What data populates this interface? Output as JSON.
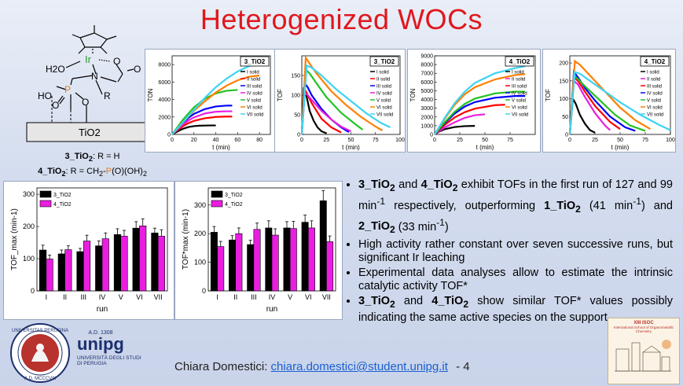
{
  "slide": {
    "title": "Heterogenized WOCs",
    "page_number": "4"
  },
  "molecule": {
    "labels": {
      "metal": "Ir",
      "water": "H2O",
      "nitrogen": "N",
      "r_group": "R",
      "ho": "HO",
      "phosphorus": "P",
      "support": "TiO2"
    },
    "caption": {
      "line1_id": "3_TiO",
      "line1_sub": "2",
      "line1_rest": ": R = H",
      "line2_id": "4_TiO",
      "line2_sub": "2",
      "line2_rest": ": R = CH",
      "line2_sub2": "2",
      "line2_dash": "-",
      "line2_p": "P",
      "line2_o": "(O)(OH)",
      "line2_sub3": "2"
    }
  },
  "chart_data": [
    {
      "type": "line",
      "panel_label": "3_TiO2",
      "ylabel": "TON",
      "xlabel": "t (min)",
      "xlim": [
        0,
        90
      ],
      "ylim": [
        0,
        9000
      ],
      "xticks": [
        0,
        20,
        40,
        60,
        80
      ],
      "yticks": [
        0,
        2000,
        4000,
        6000,
        8000
      ],
      "legend": [
        "I solid",
        "II solid",
        "III solid",
        "IV solid",
        "V solid",
        "VI solid",
        "VII solid"
      ],
      "series": [
        {
          "name": "I solid",
          "color": "#000000",
          "x": [
            0,
            5,
            10,
            15,
            20,
            25,
            30,
            35,
            40
          ],
          "y": [
            0,
            350,
            650,
            850,
            950,
            1000,
            1020,
            1030,
            1030
          ]
        },
        {
          "name": "II solid",
          "color": "#ff0000",
          "x": [
            0,
            5,
            10,
            15,
            20,
            30,
            40,
            50,
            55
          ],
          "y": [
            0,
            500,
            950,
            1300,
            1550,
            1850,
            2000,
            2050,
            2050
          ]
        },
        {
          "name": "III solid",
          "color": "#0000ff",
          "x": [
            0,
            5,
            10,
            15,
            20,
            30,
            40,
            50,
            55
          ],
          "y": [
            0,
            700,
            1350,
            1900,
            2350,
            2900,
            3200,
            3300,
            3300
          ]
        },
        {
          "name": "IV solid",
          "color": "#e91ee0",
          "x": [
            0,
            5,
            10,
            15,
            20,
            30,
            40,
            50,
            55
          ],
          "y": [
            0,
            600,
            1150,
            1600,
            1950,
            2400,
            2600,
            2650,
            2650
          ]
        },
        {
          "name": "V solid",
          "color": "#22c322",
          "x": [
            0,
            5,
            10,
            20,
            30,
            40,
            50,
            60
          ],
          "y": [
            0,
            850,
            1700,
            3100,
            4100,
            4700,
            5000,
            5100
          ]
        },
        {
          "name": "VI solid",
          "color": "#ff7f00",
          "x": [
            0,
            5,
            10,
            20,
            30,
            40,
            50,
            60,
            70,
            80
          ],
          "y": [
            0,
            700,
            1400,
            2700,
            3800,
            4800,
            5600,
            6200,
            6600,
            6750
          ]
        },
        {
          "name": "VII solid",
          "color": "#3fd3f2",
          "x": [
            0,
            10,
            20,
            30,
            40,
            50,
            60,
            70,
            80,
            85
          ],
          "y": [
            0,
            1400,
            2800,
            4200,
            5400,
            6400,
            7200,
            7800,
            8200,
            8350
          ]
        }
      ]
    },
    {
      "type": "line",
      "panel_label": "3_TiO2",
      "ylabel": "TOF",
      "xlabel": "t (min)",
      "xlim": [
        0,
        100
      ],
      "ylim": [
        0,
        200
      ],
      "xticks": [
        0,
        25,
        50,
        75,
        100
      ],
      "yticks": [
        0,
        50,
        100,
        150
      ],
      "legend": [
        "I solid",
        "II solid",
        "III solid",
        "IV solid",
        "V solid",
        "VI solid",
        "VII solid"
      ],
      "series": [
        {
          "name": "I solid",
          "color": "#000000",
          "x": [
            0,
            2,
            5,
            8,
            12,
            16,
            20,
            25
          ],
          "y": [
            0,
            120,
            95,
            60,
            35,
            18,
            8,
            3
          ]
        },
        {
          "name": "II solid",
          "color": "#ff0000",
          "x": [
            0,
            3,
            6,
            10,
            15,
            20,
            30,
            40
          ],
          "y": [
            0,
            115,
            100,
            80,
            60,
            40,
            18,
            5
          ]
        },
        {
          "name": "III solid",
          "color": "#0000ff",
          "x": [
            0,
            3,
            6,
            10,
            20,
            30,
            40,
            48
          ],
          "y": [
            0,
            130,
            120,
            100,
            65,
            38,
            18,
            6
          ]
        },
        {
          "name": "IV solid",
          "color": "#e91ee0",
          "x": [
            0,
            3,
            6,
            10,
            20,
            30,
            40,
            50
          ],
          "y": [
            0,
            105,
            100,
            88,
            60,
            38,
            20,
            8
          ]
        },
        {
          "name": "V solid",
          "color": "#22c322",
          "x": [
            0,
            4,
            8,
            15,
            25,
            40,
            55,
            62
          ],
          "y": [
            0,
            165,
            155,
            130,
            95,
            55,
            25,
            12
          ]
        },
        {
          "name": "VI solid",
          "color": "#ff7f00",
          "x": [
            0,
            4,
            8,
            15,
            30,
            45,
            60,
            75,
            82
          ],
          "y": [
            0,
            195,
            180,
            155,
            110,
            75,
            45,
            20,
            10
          ]
        },
        {
          "name": "VII solid",
          "color": "#3fd3f2",
          "x": [
            0,
            5,
            10,
            20,
            35,
            50,
            65,
            80,
            90
          ],
          "y": [
            0,
            175,
            170,
            150,
            115,
            85,
            55,
            30,
            18
          ]
        }
      ]
    },
    {
      "type": "line",
      "panel_label": "4_TiO2",
      "ylabel": "TON",
      "xlabel": "t (min)",
      "xlim": [
        0,
        100
      ],
      "ylim": [
        0,
        9000
      ],
      "xticks": [
        0,
        25,
        50,
        75
      ],
      "yticks": [
        0,
        1000,
        2000,
        3000,
        4000,
        5000,
        6000,
        7000,
        8000,
        9000
      ],
      "legend": [
        "I solid",
        "II solid",
        "III solid",
        "IV solid",
        "V solid",
        "VI solid",
        "VII solid"
      ],
      "series": [
        {
          "name": "I solid",
          "color": "#000000",
          "x": [
            0,
            5,
            10,
            20,
            30,
            40
          ],
          "y": [
            0,
            350,
            600,
            850,
            950,
            980
          ]
        },
        {
          "name": "II solid",
          "color": "#e91ee0",
          "x": [
            0,
            10,
            20,
            30,
            40,
            50
          ],
          "y": [
            0,
            800,
            1400,
            1900,
            2200,
            2300
          ]
        },
        {
          "name": "III solid",
          "color": "#ff0000",
          "x": [
            0,
            10,
            20,
            30,
            40,
            60,
            70
          ],
          "y": [
            0,
            1100,
            1950,
            2550,
            2950,
            3350,
            3400
          ]
        },
        {
          "name": "IV solid",
          "color": "#0000ff",
          "x": [
            0,
            10,
            20,
            30,
            40,
            60,
            80,
            90
          ],
          "y": [
            0,
            1300,
            2400,
            3200,
            3700,
            4200,
            4400,
            4400
          ]
        },
        {
          "name": "V solid",
          "color": "#22c322",
          "x": [
            0,
            10,
            20,
            30,
            40,
            60,
            80,
            90
          ],
          "y": [
            0,
            1400,
            2600,
            3500,
            4100,
            4700,
            4900,
            4900
          ]
        },
        {
          "name": "VI solid",
          "color": "#ff7f00",
          "x": [
            0,
            10,
            20,
            30,
            40,
            60,
            80,
            90
          ],
          "y": [
            0,
            1800,
            3400,
            4600,
            5400,
            6300,
            6800,
            6900
          ]
        },
        {
          "name": "VII solid",
          "color": "#3fd3f2",
          "x": [
            0,
            10,
            20,
            30,
            40,
            60,
            80,
            90
          ],
          "y": [
            0,
            1900,
            3600,
            4900,
            5900,
            7000,
            7600,
            7800
          ]
        }
      ]
    },
    {
      "type": "line",
      "panel_label": "4_TiO2",
      "ylabel": "TOF",
      "xlabel": "t (min)",
      "xlim": [
        0,
        100
      ],
      "ylim": [
        0,
        220
      ],
      "xticks": [
        0,
        25,
        50,
        75,
        100
      ],
      "yticks": [
        0,
        50,
        100,
        150,
        200
      ],
      "legend": [
        "I solid",
        "II solid",
        "III solid",
        "IV solid",
        "V solid",
        "VI solid",
        "VII solid"
      ],
      "series": [
        {
          "name": "I solid",
          "color": "#000000",
          "x": [
            0,
            3,
            6,
            10,
            15,
            20,
            25
          ],
          "y": [
            0,
            100,
            85,
            55,
            30,
            12,
            5
          ]
        },
        {
          "name": "II solid",
          "color": "#e91ee0",
          "x": [
            0,
            4,
            8,
            15,
            25,
            35,
            40
          ],
          "y": [
            0,
            150,
            140,
            105,
            60,
            25,
            12
          ]
        },
        {
          "name": "III solid",
          "color": "#ff0000",
          "x": [
            0,
            4,
            8,
            15,
            25,
            40,
            50
          ],
          "y": [
            0,
            160,
            150,
            120,
            80,
            35,
            15
          ]
        },
        {
          "name": "IV solid",
          "color": "#0000ff",
          "x": [
            0,
            4,
            8,
            15,
            25,
            40,
            55,
            65
          ],
          "y": [
            0,
            175,
            160,
            130,
            95,
            50,
            20,
            10
          ]
        },
        {
          "name": "V solid",
          "color": "#22c322",
          "x": [
            0,
            4,
            8,
            15,
            30,
            45,
            60,
            75
          ],
          "y": [
            0,
            165,
            155,
            135,
            95,
            55,
            25,
            10
          ]
        },
        {
          "name": "VI solid",
          "color": "#ff7f00",
          "x": [
            0,
            5,
            10,
            20,
            35,
            50,
            65,
            80
          ],
          "y": [
            0,
            205,
            195,
            165,
            120,
            75,
            40,
            15
          ]
        },
        {
          "name": "VII solid",
          "color": "#3fd3f2",
          "x": [
            0,
            5,
            10,
            20,
            35,
            50,
            70,
            90,
            100
          ],
          "y": [
            0,
            175,
            170,
            150,
            120,
            90,
            55,
            25,
            12
          ]
        }
      ]
    },
    {
      "type": "bar",
      "ylabel": "TOF_max (min-1)",
      "xlabel": "run",
      "categories": [
        "I",
        "II",
        "III",
        "IV",
        "V",
        "VI",
        "VII"
      ],
      "ylim": [
        0,
        320
      ],
      "yticks": [
        0,
        100,
        200,
        300
      ],
      "series": [
        {
          "name": "3_TiO2",
          "color": "#000000",
          "values": [
            127,
            115,
            122,
            140,
            175,
            195,
            180
          ],
          "errors": [
            15,
            12,
            10,
            15,
            18,
            20,
            15
          ]
        },
        {
          "name": "4_TiO2",
          "color": "#e91ee0",
          "values": [
            99,
            128,
            155,
            162,
            170,
            202,
            170
          ],
          "errors": [
            12,
            12,
            18,
            18,
            18,
            22,
            20
          ]
        }
      ]
    },
    {
      "type": "bar",
      "ylabel": "TOF*max (min-1)",
      "xlabel": "run",
      "categories": [
        "I",
        "II",
        "III",
        "IV",
        "V",
        "VI",
        "VII"
      ],
      "ylim": [
        0,
        360
      ],
      "yticks": [
        0,
        100,
        200,
        300
      ],
      "series": [
        {
          "name": "3_TiO2",
          "color": "#000000",
          "values": [
            205,
            178,
            162,
            220,
            220,
            240,
            315
          ],
          "errors": [
            20,
            15,
            15,
            25,
            22,
            25,
            35
          ]
        },
        {
          "name": "4_TiO2",
          "color": "#e91ee0",
          "values": [
            155,
            200,
            215,
            195,
            218,
            220,
            172
          ],
          "errors": [
            18,
            20,
            22,
            22,
            25,
            25,
            20
          ]
        }
      ]
    }
  ],
  "bullets": [
    {
      "html": "<b>3_TiO<sub>2</sub></b> and <b>4_TiO<sub>2</sub></b> exhibit TOFs in the first run of 127 and 99 min<sup>-1</sup> respectively, outperforming <b>1_TiO<sub>2</sub></b> (41 min<sup>-1</sup>) and <b>2_TiO<sub>2</sub></b> (33 min<sup>-1</sup>)"
    },
    {
      "html": "High activity rather constant over seven successive runs, but significant Ir leaching"
    },
    {
      "html": "Experimental data analyses allow to estimate the intrinsic catalytic activity TOF*"
    },
    {
      "html": "<b>3_TiO<sub>2</sub></b> and <b>4_TiO<sub>2</sub></b> show similar TOF* values possibly indicating the same active species on the support"
    }
  ],
  "footer": {
    "author": "Chiara Domestici:",
    "email": "chiara.domestici@student.unipg.it",
    "separator": "- 4"
  },
  "logos": {
    "seal_text": "UNIVERSITAS PERUSINA",
    "seal_year": "A.D. MCCCVIII",
    "unipg_year": "A.D. 1308",
    "unipg_name": "unipg",
    "unipg_sub1": "UNIVERSITÀ DEGLI STUDI",
    "unipg_sub2": "DI PERUGIA",
    "school_title": "XIII ISOC",
    "school_sub": "International School of Organometallic Chemistry"
  },
  "colors": {
    "title": "#e0171d",
    "accent_orange": "#e07b1a",
    "link": "#1a5fd1"
  }
}
